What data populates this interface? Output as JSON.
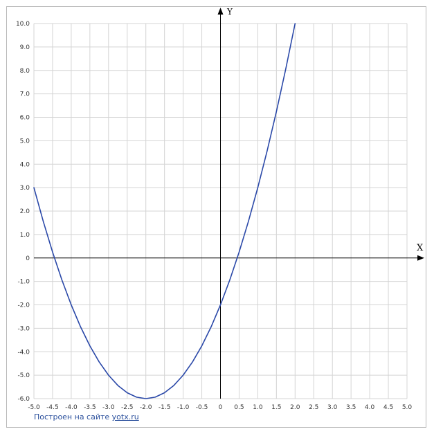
{
  "chart_data": {
    "type": "line",
    "title": "",
    "xlabel": "X",
    "ylabel": "Y",
    "xlim": [
      -5.0,
      5.0
    ],
    "ylim": [
      -6.0,
      10.0
    ],
    "grid": true,
    "x_ticks": [
      "-5.0",
      "-4.5",
      "-4.0",
      "-3.5",
      "-3.0",
      "-2.5",
      "-2.0",
      "-1.5",
      "-1.0",
      "-0.5",
      "0",
      "0.5",
      "1.0",
      "1.5",
      "2.0",
      "2.5",
      "3.0",
      "3.5",
      "4.0",
      "4.5",
      "5.0"
    ],
    "y_ticks": [
      "10.0",
      "9.0",
      "8.0",
      "7.0",
      "6.0",
      "5.0",
      "4.0",
      "3.0",
      "2.0",
      "1.0",
      "0",
      "-1.0",
      "-2.0",
      "-3.0",
      "-4.0",
      "-5.0",
      "-6.0"
    ],
    "series": [
      {
        "color": "#2a48a8",
        "x": [
          -5.0,
          -4.75,
          -4.5,
          -4.25,
          -4.0,
          -3.75,
          -3.5,
          -3.25,
          -3.0,
          -2.75,
          -2.5,
          -2.25,
          -2.0,
          -1.75,
          -1.5,
          -1.25,
          -1.0,
          -0.75,
          -0.5,
          -0.25,
          0.0,
          0.25,
          0.5,
          0.75,
          1.0,
          1.25,
          1.5,
          1.75,
          2.0
        ],
        "y": [
          3.0,
          1.5625,
          0.25,
          -0.9375,
          -2.0,
          -2.9375,
          -3.75,
          -4.4375,
          -5.0,
          -5.4375,
          -5.75,
          -5.9375,
          -6.0,
          -5.9375,
          -5.75,
          -5.4375,
          -5.0,
          -4.4375,
          -3.75,
          -2.9375,
          -2.0,
          -0.9375,
          0.25,
          1.5625,
          3.0,
          4.5625,
          6.25,
          8.0625,
          10.0
        ]
      }
    ]
  },
  "footer": {
    "prefix": "Построен на сайте ",
    "link": "yotx.ru"
  }
}
